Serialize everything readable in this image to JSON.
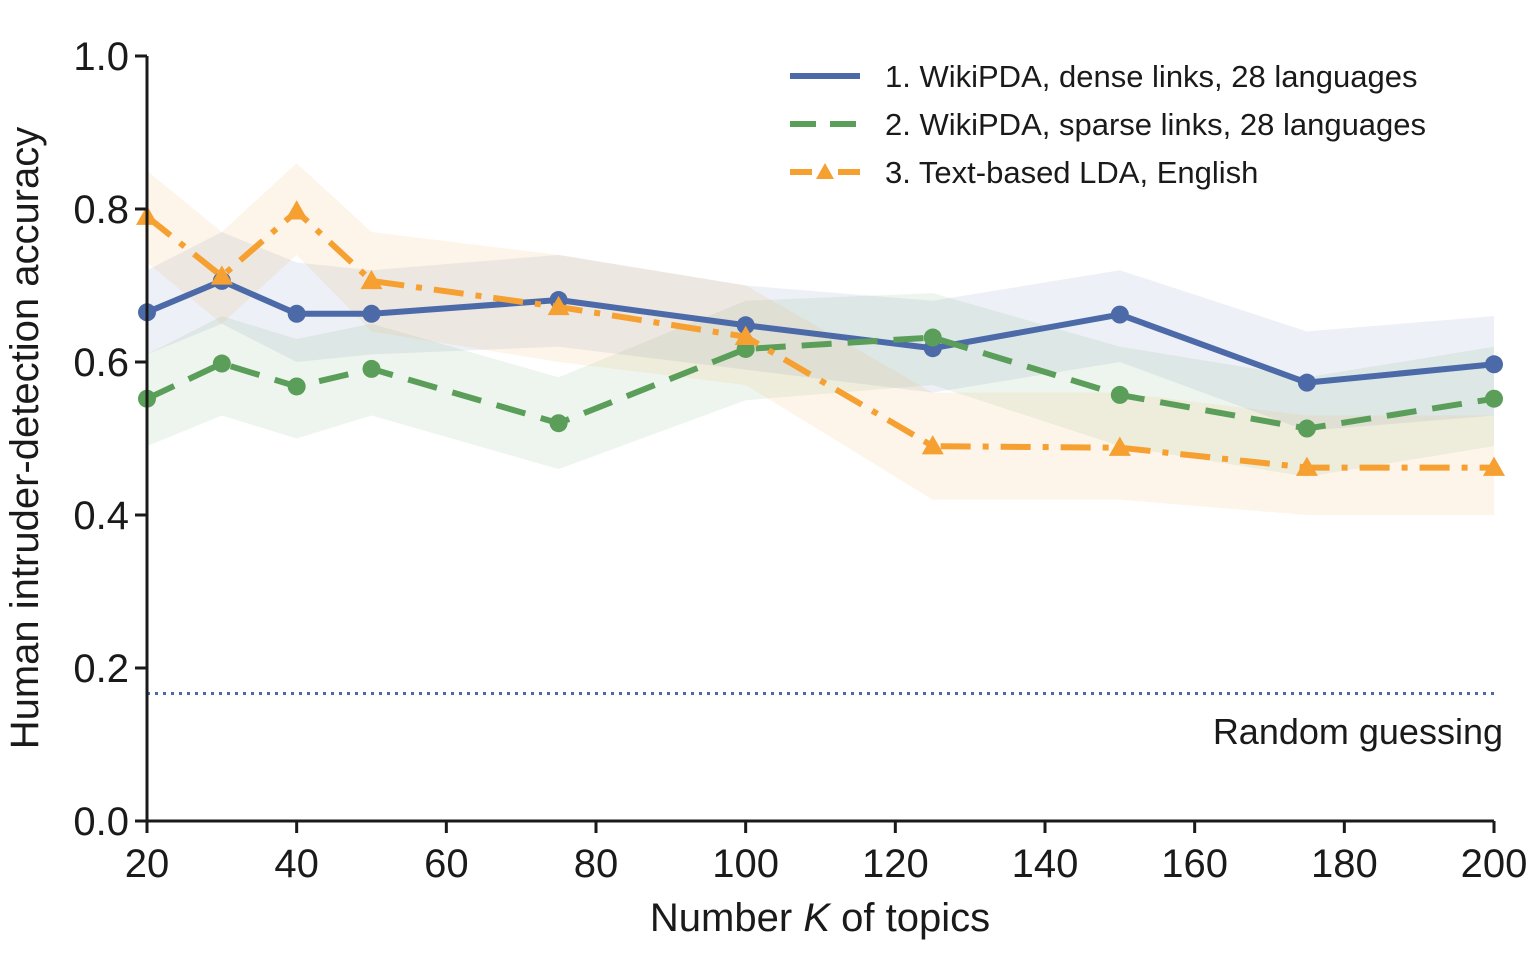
{
  "chart_data": {
    "type": "line",
    "title": "",
    "xlabel_prefix": "Number ",
    "xlabel_var": "K",
    "xlabel_suffix": " of topics",
    "ylabel": "Human intruder-detection accuracy",
    "xlim": [
      20,
      200
    ],
    "ylim": [
      0,
      1.0
    ],
    "xticks": [
      20,
      40,
      60,
      80,
      100,
      120,
      140,
      160,
      180,
      200
    ],
    "yticks": [
      0.0,
      0.2,
      0.4,
      0.6,
      0.8,
      1.0
    ],
    "ytick_labels": [
      "0.0",
      "0.2",
      "0.4",
      "0.6",
      "0.8",
      "1.0"
    ],
    "grid": false,
    "legend_position": "top-right",
    "x": [
      20,
      30,
      40,
      50,
      75,
      100,
      125,
      150,
      175,
      200
    ],
    "series": [
      {
        "name": "1. WikiPDA, dense links,  28 languages",
        "color": "#4c6aa8",
        "line_style": "solid",
        "marker": "circle",
        "values": [
          0.665,
          0.706,
          0.663,
          0.663,
          0.681,
          0.648,
          0.618,
          0.662,
          0.573,
          0.597
        ],
        "band_low": [
          0.61,
          0.65,
          0.6,
          0.61,
          0.62,
          0.59,
          0.56,
          0.6,
          0.51,
          0.53
        ],
        "band_high": [
          0.72,
          0.77,
          0.73,
          0.72,
          0.74,
          0.7,
          0.68,
          0.72,
          0.64,
          0.66
        ]
      },
      {
        "name": "2. WikiPDA, sparse links, 28 languages",
        "color": "#5a9e5a",
        "line_style": "dashed",
        "marker": "circle",
        "values": [
          0.552,
          0.598,
          0.568,
          0.591,
          0.52,
          0.617,
          0.632,
          0.557,
          0.513,
          0.552
        ],
        "band_low": [
          0.49,
          0.53,
          0.5,
          0.53,
          0.46,
          0.55,
          0.57,
          0.49,
          0.45,
          0.49
        ],
        "band_high": [
          0.61,
          0.66,
          0.63,
          0.65,
          0.58,
          0.68,
          0.69,
          0.62,
          0.58,
          0.62
        ]
      },
      {
        "name": "3. Text-based LDA, English",
        "color": "#f5a031",
        "line_style": "dashdot",
        "marker": "triangle",
        "values": [
          0.79,
          0.712,
          0.797,
          0.706,
          0.672,
          0.633,
          0.49,
          0.488,
          0.462,
          0.462
        ],
        "band_low": [
          0.73,
          0.65,
          0.74,
          0.64,
          0.6,
          0.57,
          0.42,
          0.42,
          0.4,
          0.4
        ],
        "band_high": [
          0.85,
          0.77,
          0.86,
          0.77,
          0.74,
          0.7,
          0.56,
          0.56,
          0.53,
          0.53
        ]
      }
    ],
    "baseline": {
      "label": "Random guessing",
      "value": 0.1667,
      "color": "#4c6aa8",
      "line_style": "dotted"
    }
  }
}
